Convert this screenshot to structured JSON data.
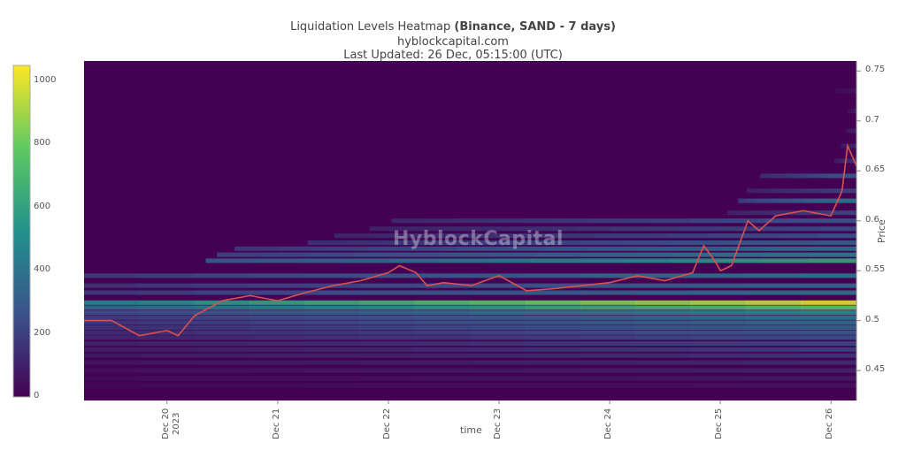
{
  "title": {
    "line1_prefix": "Liquidation Levels Heatmap ",
    "line1_bold": "(Binance, SAND - 7 days)",
    "line2": "hyblockcapital.com",
    "line3": "Last Updated: 26 Dec, 05:15:00 (UTC)"
  },
  "watermark": "HyblockCapital",
  "chart_data": {
    "type": "heatmap",
    "xlabel": "time",
    "ylabel": "Price",
    "ylim": [
      0.42,
      0.76
    ],
    "y_ticks": [
      "0.75",
      "0.7",
      "0.65",
      "0.6",
      "0.55",
      "0.5",
      "0.45"
    ],
    "y_tick_values": [
      0.75,
      0.7,
      0.65,
      0.6,
      0.55,
      0.5,
      0.45
    ],
    "x_ticks": [
      {
        "label": "Dec 20",
        "sub": "2023"
      },
      {
        "label": "Dec 21",
        "sub": ""
      },
      {
        "label": "Dec 22",
        "sub": ""
      },
      {
        "label": "Dec 23",
        "sub": ""
      },
      {
        "label": "Dec 24",
        "sub": ""
      },
      {
        "label": "Dec 25",
        "sub": ""
      },
      {
        "label": "Dec 26",
        "sub": ""
      }
    ],
    "x_tick_days": [
      20,
      21,
      22,
      23,
      24,
      25,
      26
    ],
    "x_range_days": [
      19.25,
      26.23
    ],
    "colorbar": {
      "min": 0,
      "max": 1050,
      "ticks": [
        "1000",
        "800",
        "600",
        "400",
        "200",
        "0"
      ],
      "tick_values": [
        1000,
        800,
        600,
        400,
        200,
        0
      ]
    },
    "colors": {
      "background": "#440154",
      "scale": [
        "#440154",
        "#3b528b",
        "#21918c",
        "#5ec962",
        "#fde725"
      ],
      "price_line": "#d9534f"
    },
    "price_series": {
      "x_days": [
        19.25,
        19.5,
        19.75,
        20.0,
        20.1,
        20.25,
        20.5,
        20.75,
        21.0,
        21.25,
        21.5,
        21.75,
        22.0,
        22.1,
        22.25,
        22.35,
        22.5,
        22.75,
        23.0,
        23.25,
        23.5,
        23.75,
        24.0,
        24.25,
        24.5,
        24.75,
        24.85,
        24.95,
        25.0,
        25.1,
        25.25,
        25.35,
        25.5,
        25.75,
        26.0,
        26.1,
        26.15,
        26.23
      ],
      "y_price": [
        0.5,
        0.5,
        0.485,
        0.49,
        0.485,
        0.505,
        0.52,
        0.525,
        0.52,
        0.528,
        0.535,
        0.54,
        0.548,
        0.555,
        0.548,
        0.535,
        0.538,
        0.535,
        0.545,
        0.53,
        0.532,
        0.535,
        0.538,
        0.545,
        0.54,
        0.548,
        0.575,
        0.56,
        0.55,
        0.555,
        0.6,
        0.59,
        0.605,
        0.61,
        0.605,
        0.63,
        0.675,
        0.655
      ]
    },
    "liquidation_bands": [
      {
        "price": 0.518,
        "intensity": 1000
      },
      {
        "price": 0.513,
        "intensity": 780
      },
      {
        "price": 0.508,
        "intensity": 520
      },
      {
        "price": 0.503,
        "intensity": 420
      },
      {
        "price": 0.498,
        "intensity": 380
      },
      {
        "price": 0.493,
        "intensity": 330
      },
      {
        "price": 0.488,
        "intensity": 300
      },
      {
        "price": 0.483,
        "intensity": 260
      },
      {
        "price": 0.477,
        "intensity": 230
      },
      {
        "price": 0.471,
        "intensity": 200
      },
      {
        "price": 0.465,
        "intensity": 170
      },
      {
        "price": 0.458,
        "intensity": 140
      },
      {
        "price": 0.45,
        "intensity": 110
      },
      {
        "price": 0.442,
        "intensity": 80
      },
      {
        "price": 0.435,
        "intensity": 60
      },
      {
        "price": 0.56,
        "intensity": 620
      },
      {
        "price": 0.566,
        "intensity": 450
      },
      {
        "price": 0.572,
        "intensity": 380
      },
      {
        "price": 0.578,
        "intensity": 320
      },
      {
        "price": 0.585,
        "intensity": 260
      },
      {
        "price": 0.592,
        "intensity": 240
      },
      {
        "price": 0.6,
        "intensity": 280
      },
      {
        "price": 0.608,
        "intensity": 230
      },
      {
        "price": 0.62,
        "intensity": 420
      },
      {
        "price": 0.63,
        "intensity": 220
      },
      {
        "price": 0.645,
        "intensity": 300
      },
      {
        "price": 0.66,
        "intensity": 180
      },
      {
        "price": 0.675,
        "intensity": 140
      },
      {
        "price": 0.69,
        "intensity": 110
      },
      {
        "price": 0.71,
        "intensity": 90
      },
      {
        "price": 0.73,
        "intensity": 70
      },
      {
        "price": 0.545,
        "intensity": 420
      },
      {
        "price": 0.535,
        "intensity": 360
      },
      {
        "price": 0.528,
        "intensity": 400
      }
    ]
  }
}
